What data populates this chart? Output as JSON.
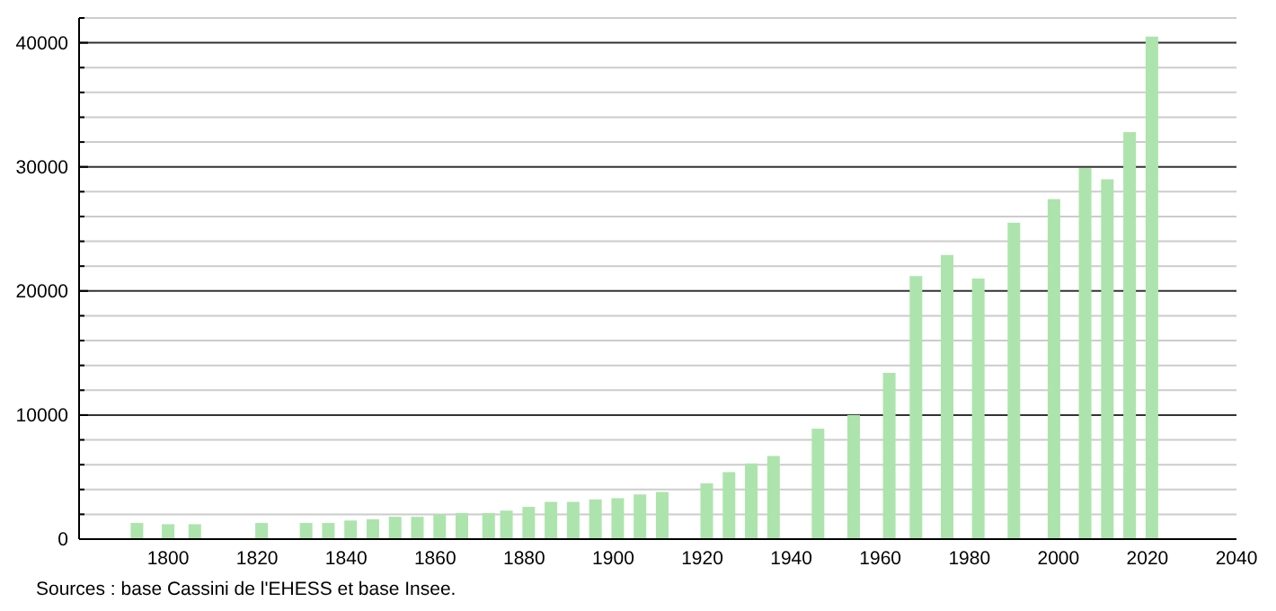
{
  "chart_data": {
    "type": "bar",
    "x": [
      1793,
      1800,
      1806,
      1821,
      1831,
      1836,
      1841,
      1846,
      1851,
      1856,
      1861,
      1866,
      1872,
      1876,
      1881,
      1886,
      1891,
      1896,
      1901,
      1906,
      1911,
      1921,
      1926,
      1931,
      1936,
      1946,
      1954,
      1962,
      1968,
      1975,
      1982,
      1990,
      1999,
      2006,
      2011,
      2016,
      2021
    ],
    "values": [
      1300,
      1200,
      1200,
      1300,
      1300,
      1300,
      1500,
      1600,
      1800,
      1800,
      2000,
      2100,
      2100,
      2300,
      2600,
      3000,
      3000,
      3200,
      3300,
      3600,
      3800,
      4500,
      5400,
      6100,
      6700,
      8900,
      10000,
      13400,
      21200,
      22900,
      21000,
      25500,
      27400,
      29900,
      29000,
      32800,
      40500
    ],
    "color": "#ade4ad",
    "xlim": [
      1780,
      2040
    ],
    "xticks": [
      1800,
      1820,
      1840,
      1860,
      1880,
      1900,
      1920,
      1940,
      1960,
      1980,
      2000,
      2020,
      2040
    ],
    "ylim": [
      0,
      42000
    ],
    "yticks": [
      0,
      {
        "value": 2000,
        "label": null
      },
      {
        "value": 4000,
        "label": null
      },
      {
        "value": 6000,
        "label": null
      },
      {
        "value": 8000,
        "label": null
      },
      10000,
      {
        "value": 12000,
        "label": null
      },
      {
        "value": 14000,
        "label": null
      },
      {
        "value": 16000,
        "label": null
      },
      {
        "value": 18000,
        "label": null
      },
      20000,
      {
        "value": 22000,
        "label": null
      },
      {
        "value": 24000,
        "label": null
      },
      {
        "value": 26000,
        "label": null
      },
      {
        "value": 28000,
        "label": null
      },
      30000,
      {
        "value": 32000,
        "label": null
      },
      {
        "value": 34000,
        "label": null
      },
      {
        "value": 36000,
        "label": null
      },
      {
        "value": 38000,
        "label": null
      },
      40000,
      {
        "value": 42000,
        "label": null
      }
    ],
    "grid": true,
    "annotations": [
      "Sources : base Cassini de l'EHESS et base Insee."
    ]
  }
}
